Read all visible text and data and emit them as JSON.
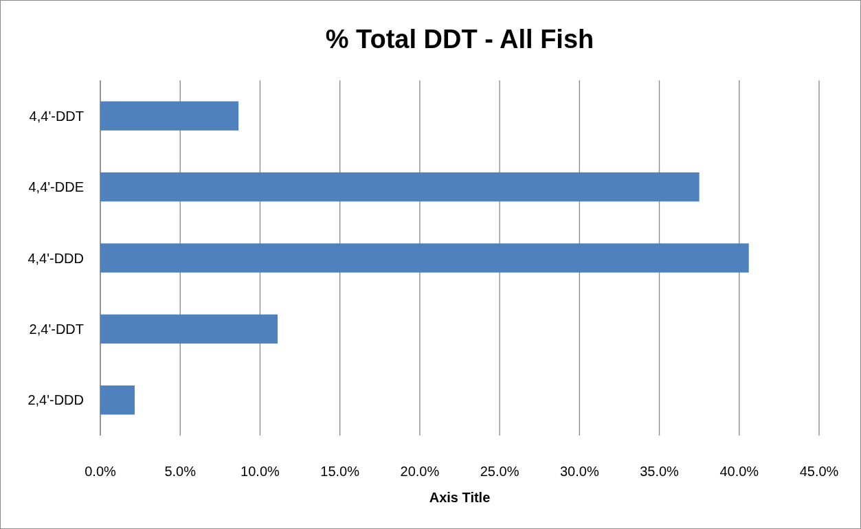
{
  "chart_data": {
    "type": "bar",
    "orientation": "horizontal",
    "title": "% Total DDT - All Fish",
    "xlabel": "Axis Title",
    "categories": [
      "4,4'-DDT",
      "4,4'-DDE",
      "4,4'-DDD",
      "2,4'-DDT",
      "2,4'-DDD"
    ],
    "values": [
      8.65,
      37.5,
      40.6,
      11.1,
      2.15
    ],
    "color": "#4f81bd",
    "xlim": [
      0,
      45
    ],
    "xticks": [
      {
        "value": 0,
        "label": "0.0%"
      },
      {
        "value": 5,
        "label": "5.0%"
      },
      {
        "value": 10,
        "label": "10.0%"
      },
      {
        "value": 15,
        "label": "15.0%"
      },
      {
        "value": 20,
        "label": "20.0%"
      },
      {
        "value": 25,
        "label": "25.0%"
      },
      {
        "value": 30,
        "label": "30.0%"
      },
      {
        "value": 35,
        "label": "35.0%"
      },
      {
        "value": 40,
        "label": "40.0%"
      },
      {
        "value": 45,
        "label": "45.0%"
      }
    ],
    "grid": "x"
  }
}
